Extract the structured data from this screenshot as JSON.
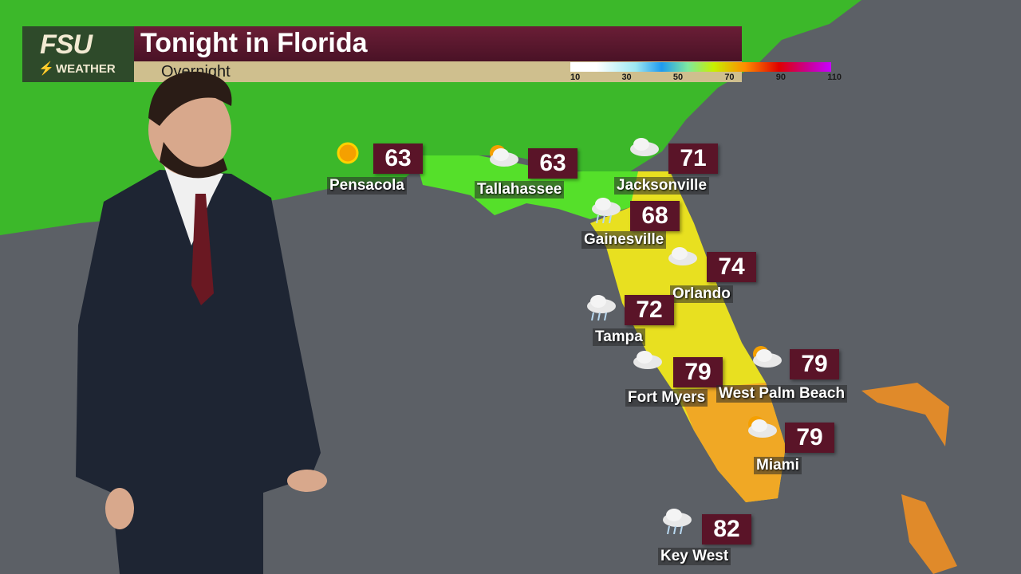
{
  "header": {
    "logo_main": "FSU",
    "logo_sub": "WEATHER",
    "title": "Tonight in Florida",
    "subtitle": "Overnight",
    "scale_ticks": [
      "10",
      "30",
      "50",
      "70",
      "90",
      "110"
    ]
  },
  "cities": [
    {
      "name": "Pensacola",
      "temp": "63",
      "icon": "sunny-icon"
    },
    {
      "name": "Tallahassee",
      "temp": "63",
      "icon": "partly-cloudy-icon"
    },
    {
      "name": "Jacksonville",
      "temp": "71",
      "icon": "cloudy-icon"
    },
    {
      "name": "Gainesville",
      "temp": "68",
      "icon": "rain-icon"
    },
    {
      "name": "Orlando",
      "temp": "74",
      "icon": "cloudy-icon"
    },
    {
      "name": "Tampa",
      "temp": "72",
      "icon": "rain-icon"
    },
    {
      "name": "Fort Myers",
      "temp": "79",
      "icon": "cloudy-icon"
    },
    {
      "name": "West Palm Beach",
      "temp": "79",
      "icon": "partly-cloudy-icon"
    },
    {
      "name": "Miami",
      "temp": "79",
      "icon": "partly-cloudy-icon"
    },
    {
      "name": "Key West",
      "temp": "82",
      "icon": "rain-icon"
    }
  ],
  "colors": {
    "ocean": "#5c6066",
    "land": "#3fc22a",
    "florida_north": "#7ee020",
    "florida_central": "#f0e020",
    "florida_south": "#f0a020",
    "brand": "#5a1428"
  }
}
